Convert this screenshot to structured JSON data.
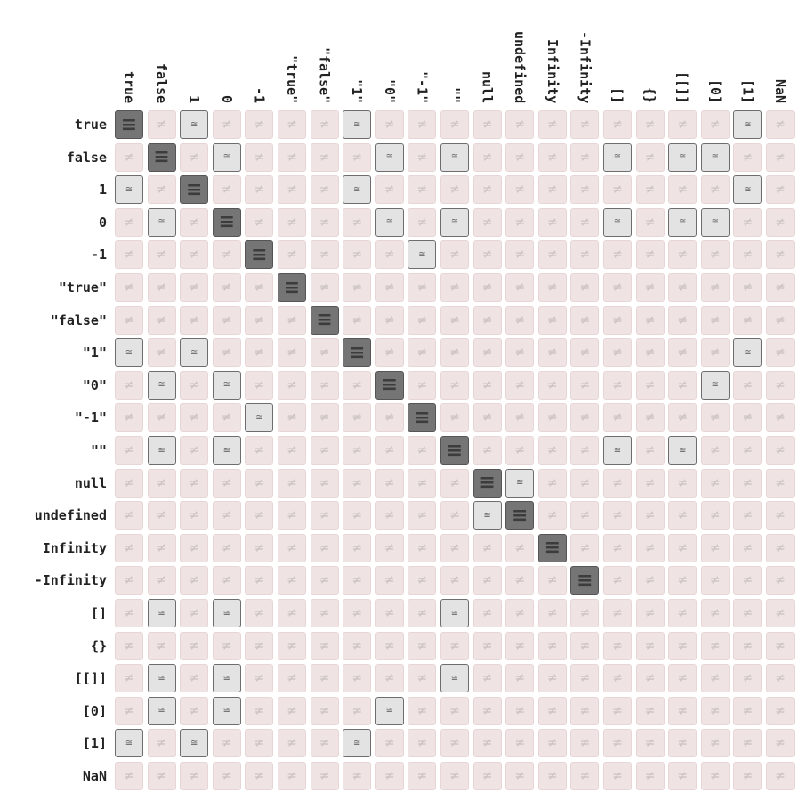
{
  "values": [
    "true",
    "false",
    "1",
    "0",
    "-1",
    "\"true\"",
    "\"false\"",
    "\"1\"",
    "\"0\"",
    "\"-1\"",
    "\"\"",
    "null",
    "undefined",
    "Infinity",
    "-Infinity",
    "[]",
    "{}",
    "[[]]",
    "[0]",
    "[1]",
    "NaN"
  ],
  "glyphs": {
    "strict": "≡",
    "loose": "≅",
    "not_equal": "≠"
  },
  "colors": {
    "not_equal_bg": "#efe3e3",
    "loose_bg": "#e3e3e3",
    "strict_bg": "#757575"
  },
  "matrix": [
    "SNLNNNNLNNNNNNNNNNNLN",
    "NSNLNNNNLNLNNNNLNLLNN",
    "LNSNNNNLNNNNNNNNNNNLN",
    "NLNSNNNNLNLNNNNLNLLNN",
    "NNNNSNNNNLNNNNNNNNNNN",
    "NNNNNSNNNNNNNNNNNNNNN",
    "NNNNNNSNNNNNNNNNNNNNN",
    "LNLNNNNSNNNNNNNNNNNLN",
    "NLNLNNNNSNNNNNNNNNLNN",
    "NNNNLNNNNSNNNNNNNNNNN",
    "NLNLNNNNNNSNNNNLNLNNN",
    "NNNNNNNNNNNSLNNNNNNNN",
    "NNNNNNNNNNNLSNNNNNNNN",
    "NNNNNNNNNNNNNSNNNNNNN",
    "NNNNNNNNNNNNNNSNNNNNN",
    "NLNLNNNNNNLNNNNNNNNNN",
    "NNNNNNNNNNNNNNNNNNNNN",
    "NLNLNNNNNNLNNNNNNNNNN",
    "NLNLNNNNLNNNNNNNNNNNN",
    "LNLNNNNLNNNNNNNNNNNNN",
    "NNNNNNNNNNNNNNNNNNNNN"
  ]
}
